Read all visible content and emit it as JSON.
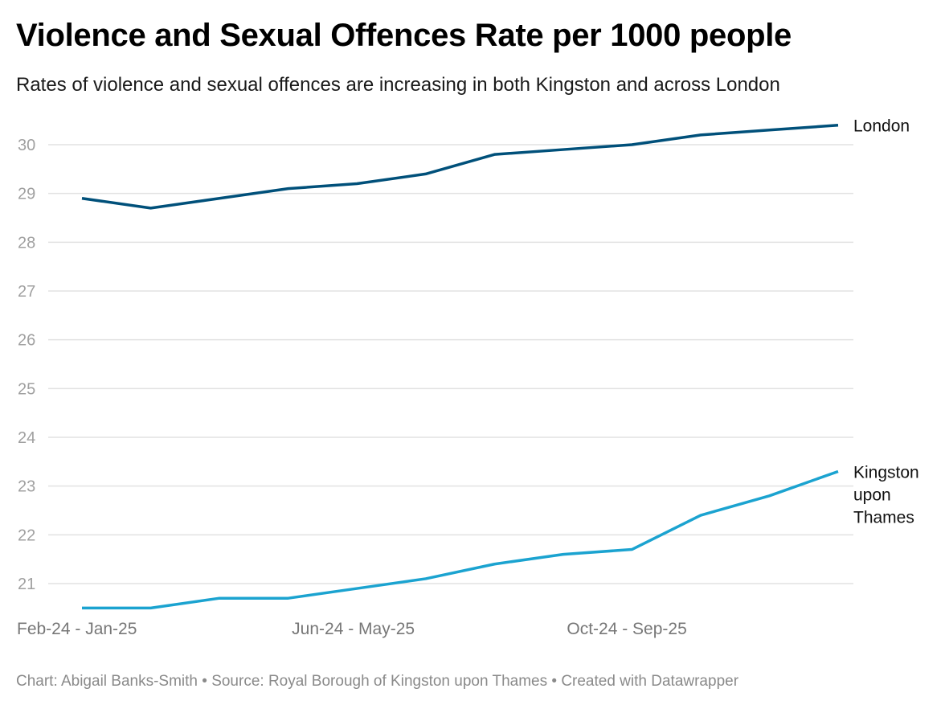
{
  "chart_data": {
    "type": "line",
    "title": "Violence and Sexual Offences Rate per 1000 people",
    "subtitle": "Rates of violence and sexual offences are increasing in both Kingston and across London",
    "xlabel": "",
    "ylabel": "",
    "x": [
      0,
      1,
      2,
      3,
      4,
      5,
      6,
      7,
      8,
      9,
      10,
      11
    ],
    "x_ticks": [
      {
        "index": 0,
        "label": "Feb-24 - Jan-25"
      },
      {
        "index": 4,
        "label": "Jun-24 - May-25"
      },
      {
        "index": 8,
        "label": "Oct-24 - Sep-25"
      }
    ],
    "y_ticks": [
      21,
      22,
      23,
      24,
      25,
      26,
      27,
      28,
      29,
      30
    ],
    "ylim": [
      20.5,
      30.4
    ],
    "grid": true,
    "series": [
      {
        "name": "London",
        "label_lines": [
          "London"
        ],
        "color": "#00507a",
        "values": [
          28.9,
          28.7,
          28.9,
          29.1,
          29.2,
          29.4,
          29.8,
          29.9,
          30.0,
          30.2,
          30.3,
          30.4
        ]
      },
      {
        "name": "Kingston upon Thames",
        "label_lines": [
          "Kingston",
          "upon",
          "Thames"
        ],
        "color": "#1ba3d0",
        "values": [
          20.5,
          20.5,
          20.7,
          20.7,
          20.9,
          21.1,
          21.4,
          21.6,
          21.7,
          22.4,
          22.8,
          23.3
        ]
      }
    ]
  },
  "footer": "Chart: Abigail Banks-Smith • Source: Royal Borough of Kingston upon Thames • Created with Datawrapper"
}
